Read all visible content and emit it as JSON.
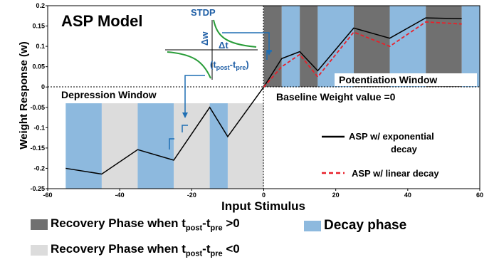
{
  "chart_data": {
    "type": "line",
    "title": "ASP Model",
    "xlabel": "Input Stimulus",
    "ylabel": "Weight Response (w)",
    "xlim": [
      -60,
      60
    ],
    "ylim": [
      -0.25,
      0.2
    ],
    "xticks": [
      "-60",
      "-40",
      "-20",
      "0",
      "20",
      "40",
      "60"
    ],
    "yticks": [
      "0.2",
      "0.15",
      "0.1",
      "0.05",
      "0",
      "-0.05",
      "-0.1",
      "-0.15",
      "-0.2",
      "-0.25"
    ],
    "series": [
      {
        "name": "ASP w/ exponential decay",
        "color": "#000000",
        "style": "solid",
        "x": [
          -55,
          -45,
          -35,
          -25,
          -15,
          -10,
          0,
          5,
          10,
          15,
          25,
          35,
          45,
          55
        ],
        "y": [
          -0.2,
          -0.214,
          -0.154,
          -0.18,
          -0.05,
          -0.122,
          0,
          0.07,
          0.087,
          0.04,
          0.145,
          0.12,
          0.17,
          0.168
        ]
      },
      {
        "name": "ASP w/ linear decay",
        "color": "#e8202a",
        "style": "dashed",
        "x": [
          0,
          5,
          10,
          15,
          25,
          35,
          45,
          55
        ],
        "y": [
          0,
          0.05,
          0.08,
          0.025,
          0.135,
          0.1,
          0.16,
          0.155
        ]
      }
    ],
    "regions": {
      "decay_phase": [
        [
          -55,
          -45
        ],
        [
          -35,
          -25
        ],
        [
          -15,
          -10
        ],
        [
          5,
          10
        ],
        [
          15,
          25
        ],
        [
          35,
          45
        ],
        [
          55,
          55
        ]
      ],
      "recovery_positive": [
        [
          0,
          5
        ],
        [
          10,
          15
        ],
        [
          25,
          35
        ],
        [
          45,
          55
        ]
      ],
      "recovery_negative": [
        [
          -45,
          -35
        ],
        [
          -25,
          -15
        ],
        [
          -10,
          0
        ]
      ]
    },
    "annotations": {
      "depression_window": "Depression Window",
      "potentiation_window": "Potentiation Window",
      "baseline": "Baseline Weight value =0"
    },
    "inset": {
      "title": "STDP",
      "dw": "Δw",
      "dt": "Δt",
      "tpost_label": "(t",
      "tpost_sub": "post",
      "dash": "-t",
      "tpre_sub": "pre",
      "close": ")"
    }
  },
  "colors": {
    "decay": "#8db9de",
    "recovery_positive": "#707070",
    "recovery_negative": "#dcdcdc",
    "inset_curve": "#2a9d3a",
    "inset_text": "#1f5fa6",
    "arrow": "#1f6fb4"
  },
  "legend": {
    "recovery_pos": {
      "text": "Recovery Phase when t",
      "sub1": "post",
      "dash": "-t",
      "sub2": "pre",
      "tail": " >0"
    },
    "decay": "Decay phase",
    "recovery_neg": {
      "text": "Recovery Phase when t",
      "sub1": "post",
      "dash": "-t",
      "sub2": "pre",
      "tail": " <0"
    }
  }
}
